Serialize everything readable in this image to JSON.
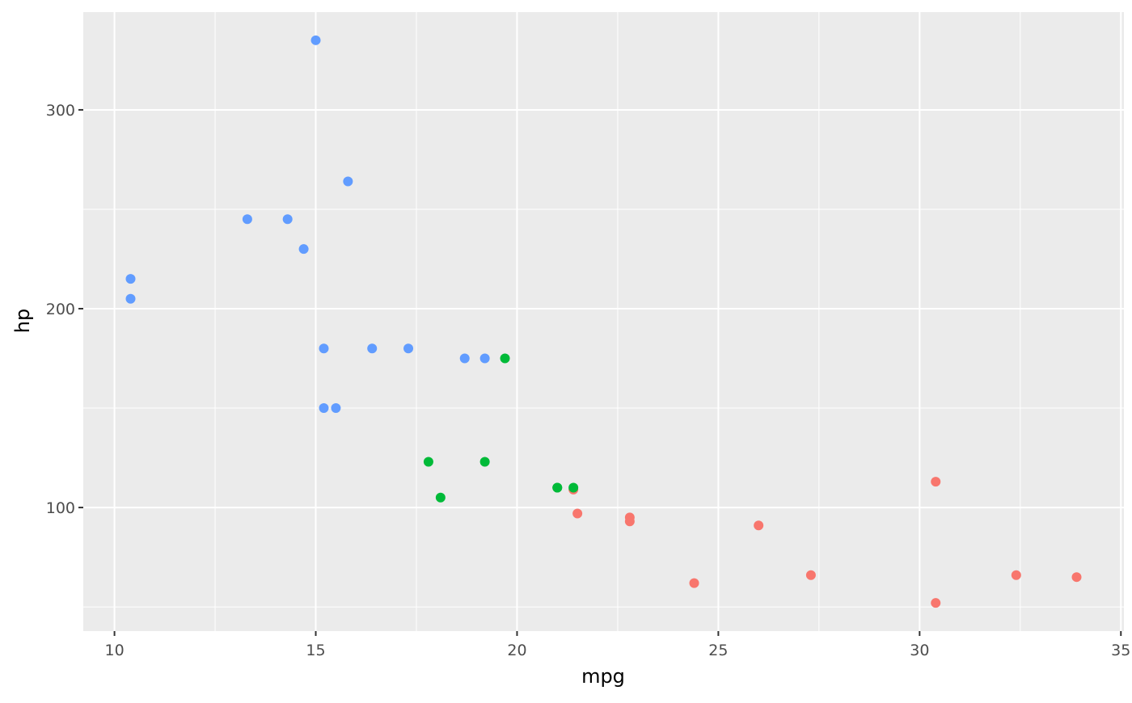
{
  "chart_data": {
    "type": "scatter",
    "x_label": "mpg",
    "y_label": "hp",
    "xlim": [
      9.225,
      35.075
    ],
    "ylim": [
      37.85,
      349.15
    ],
    "xticks": [
      10,
      15,
      20,
      25,
      30,
      35
    ],
    "yticks": [
      100,
      200,
      300
    ],
    "x_minor_breaks": [
      12.5,
      17.5,
      22.5,
      27.5,
      32.5
    ],
    "y_minor_breaks": [
      50,
      150,
      250
    ],
    "grid": true,
    "panel_color": "#EBEBEB",
    "series": [
      {
        "color": "#F8766D",
        "x": [
          22.8,
          24.4,
          22.8,
          32.4,
          30.4,
          33.9,
          21.5,
          27.3,
          26.0,
          30.4,
          21.4
        ],
        "values": [
          93,
          62,
          95,
          66,
          52,
          65,
          97,
          66,
          91,
          113,
          109
        ]
      },
      {
        "color": "#00BA38",
        "x": [
          21.0,
          21.0,
          21.4,
          18.1,
          19.2,
          17.8,
          19.7
        ],
        "values": [
          110,
          110,
          110,
          105,
          123,
          123,
          175
        ]
      },
      {
        "color": "#619CFF",
        "x": [
          18.7,
          14.3,
          16.4,
          17.3,
          15.2,
          10.4,
          10.4,
          14.7,
          15.5,
          15.2,
          13.3,
          19.2,
          15.8,
          15.0
        ],
        "values": [
          175,
          245,
          180,
          180,
          180,
          205,
          215,
          230,
          150,
          150,
          245,
          175,
          264,
          335
        ]
      }
    ]
  }
}
